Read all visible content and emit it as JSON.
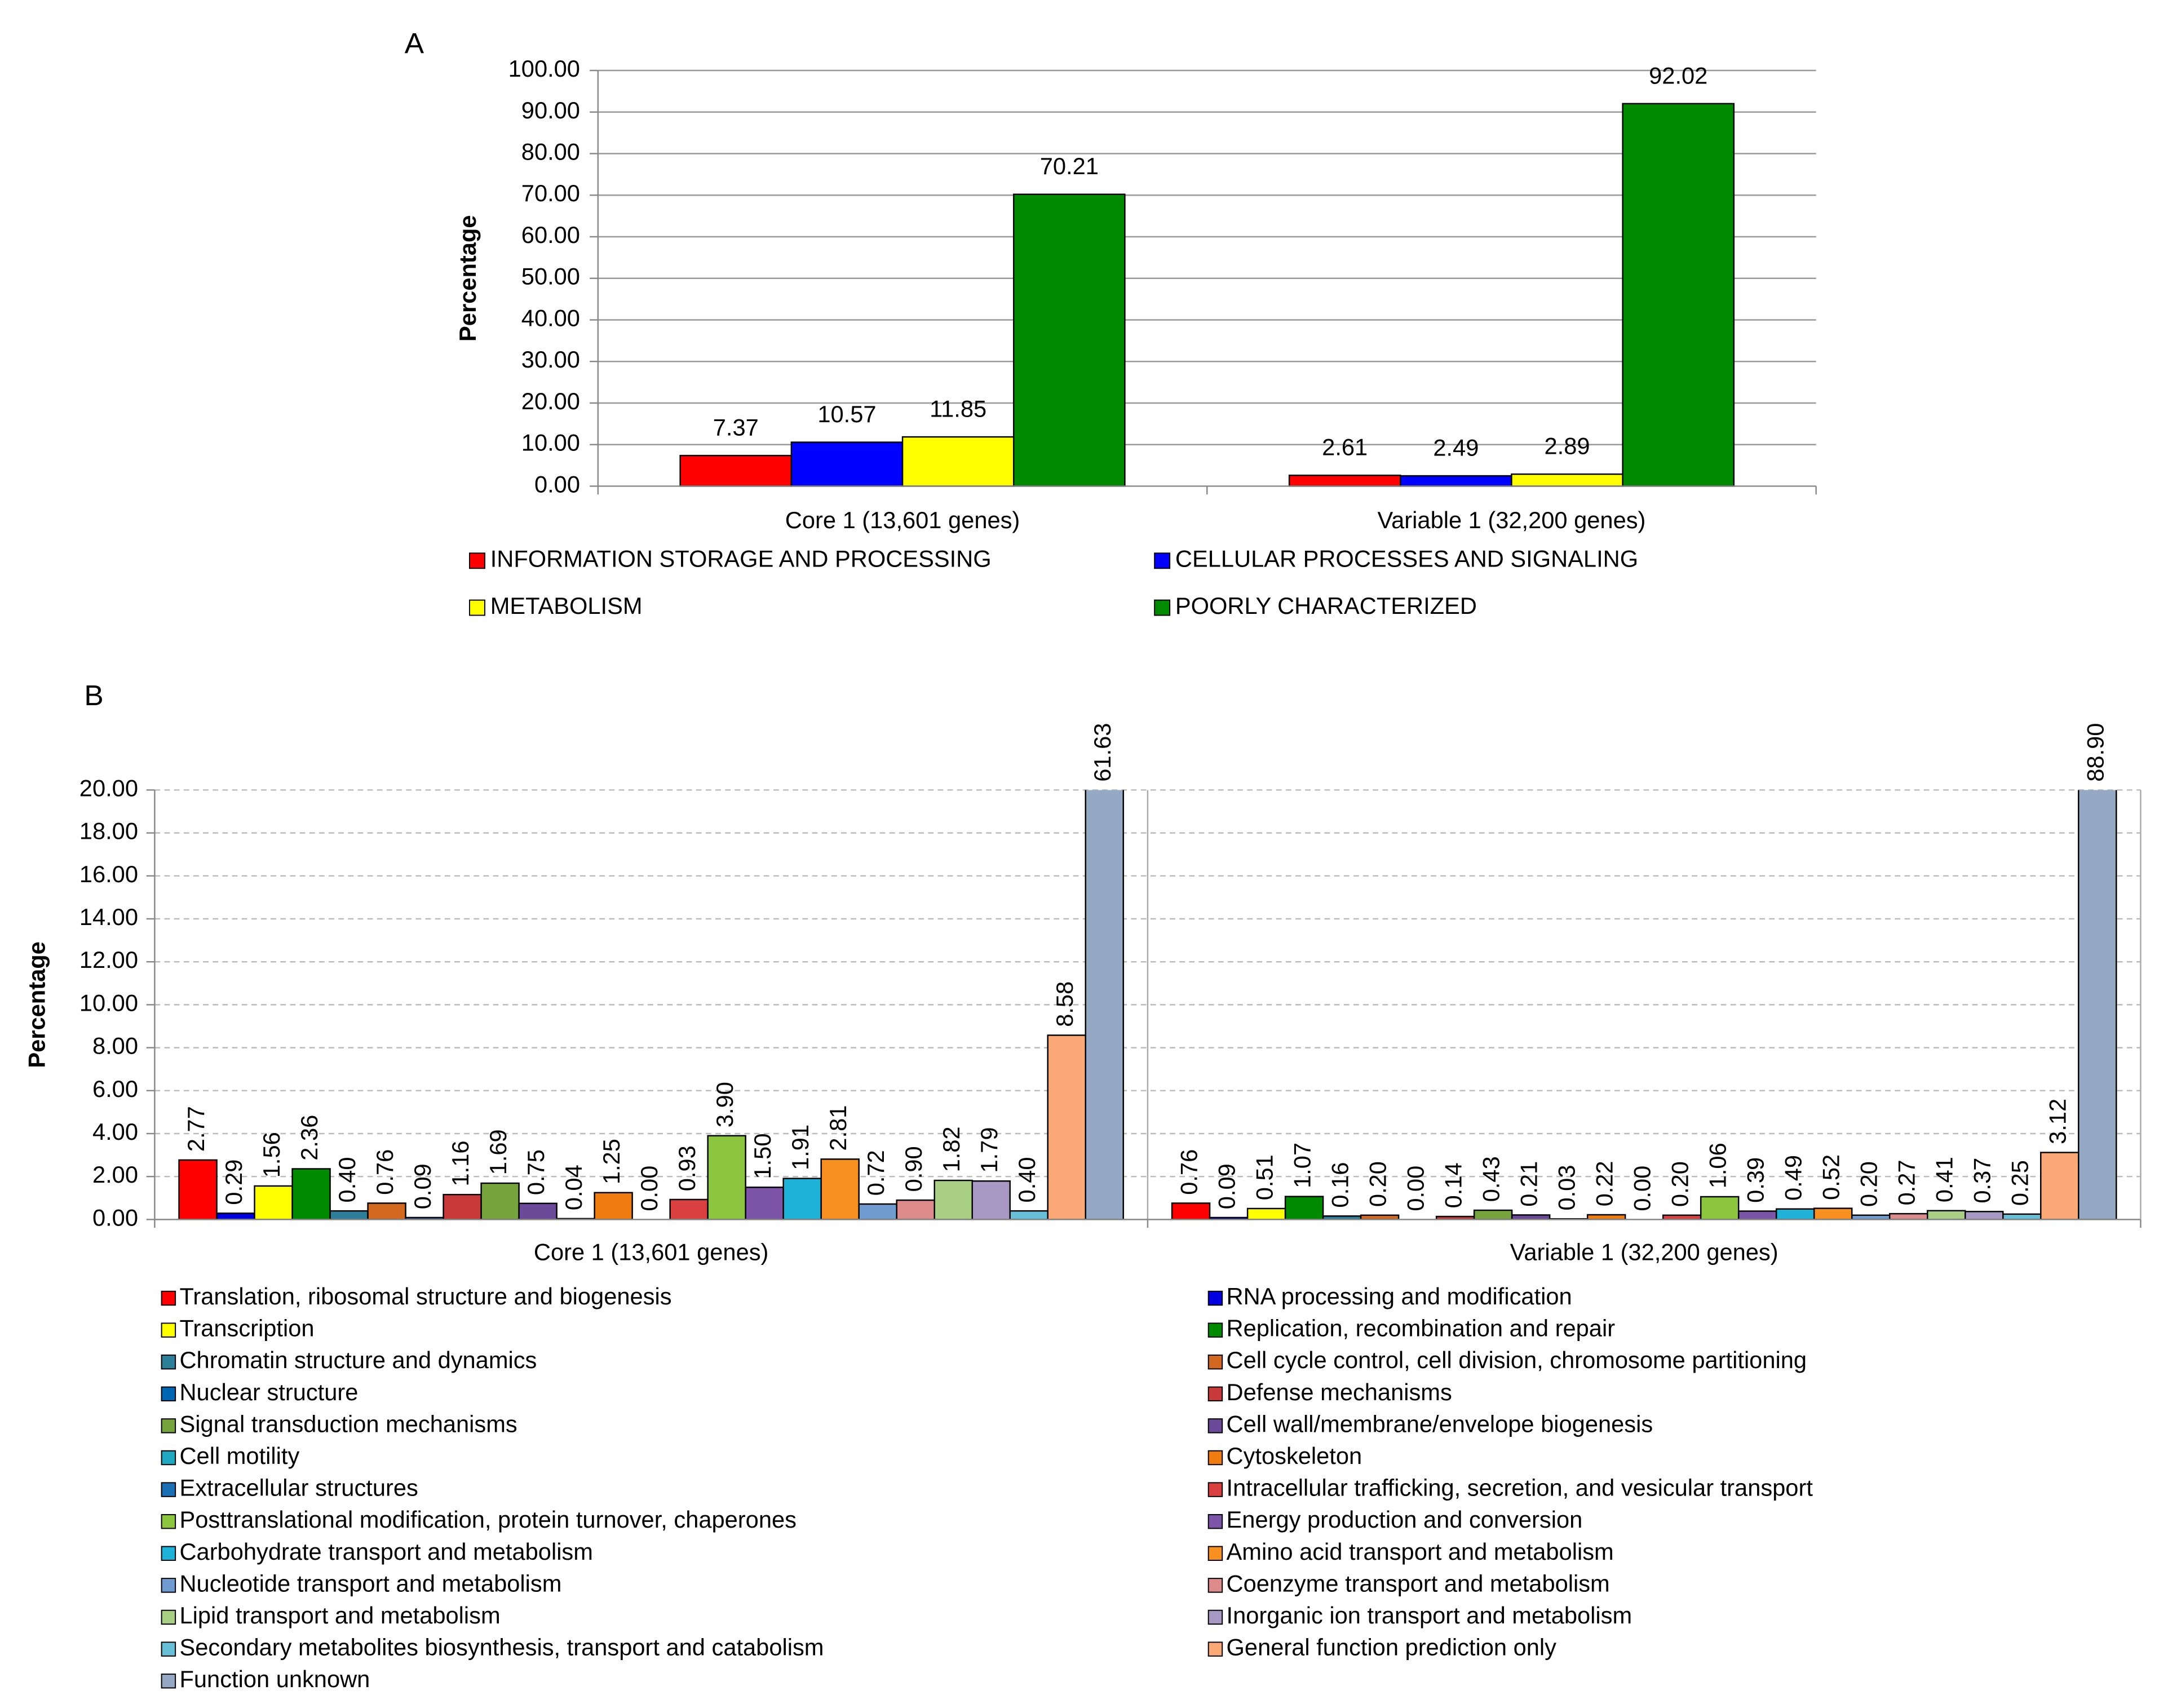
{
  "chart_data": [
    {
      "type": "bar",
      "panel_label": "A",
      "ylabel": "Percentage",
      "categories": [
        "Core 1 (13,601 genes)",
        "Variable 1 (32,200 genes)"
      ],
      "series": [
        {
          "name": "INFORMATION STORAGE AND PROCESSING",
          "color": "#ff0000",
          "values": [
            7.37,
            2.61
          ]
        },
        {
          "name": "CELLULAR PROCESSES AND SIGNALING",
          "color": "#0000ff",
          "values": [
            10.57,
            2.49
          ]
        },
        {
          "name": "METABOLISM",
          "color": "#ffff00",
          "values": [
            11.85,
            2.89
          ]
        },
        {
          "name": "POORLY CHARACTERIZED",
          "color": "#008a00",
          "values": [
            70.21,
            92.02
          ]
        }
      ],
      "ylim": [
        0,
        100
      ],
      "yticks": [
        {
          "value": 0,
          "label": "0.00"
        },
        {
          "value": 10,
          "label": "10.00"
        },
        {
          "value": 20,
          "label": "20.00"
        },
        {
          "value": 30,
          "label": "30.00"
        },
        {
          "value": 40,
          "label": "40.00"
        },
        {
          "value": 50,
          "label": "50.00"
        },
        {
          "value": 60,
          "label": "60.00"
        },
        {
          "value": 70,
          "label": "70.00"
        },
        {
          "value": 80,
          "label": "80.00"
        },
        {
          "value": 90,
          "label": "90.00"
        },
        {
          "value": 100,
          "label": "100.00"
        }
      ],
      "grid": true,
      "legend": "bottom"
    },
    {
      "type": "bar",
      "panel_label": "B",
      "ylabel": "Percentage",
      "categories": [
        "Core 1 (13,601 genes)",
        "Variable 1 (32,200 genes)"
      ],
      "series": [
        {
          "name": "Translation, ribosomal structure and biogenesis",
          "color": "#ff0000",
          "values": [
            2.77,
            0.76
          ],
          "value_labels": [
            "2.77",
            "0.76"
          ]
        },
        {
          "name": "RNA processing and modification",
          "color": "#0000e0",
          "values": [
            0.29,
            0.09
          ],
          "value_labels": [
            "0.29",
            "0.09"
          ]
        },
        {
          "name": "Transcription",
          "color": "#ffff00",
          "values": [
            1.56,
            0.51
          ],
          "value_labels": [
            "1.56",
            "0.51"
          ]
        },
        {
          "name": "Replication, recombination and repair",
          "color": "#008a00",
          "values": [
            2.36,
            1.07
          ],
          "value_labels": [
            "2.36",
            "1.07"
          ]
        },
        {
          "name": "Chromatin structure and dynamics",
          "color": "#2e7f99",
          "values": [
            0.4,
            0.16
          ],
          "value_labels": [
            "0.40",
            "0.16"
          ]
        },
        {
          "name": "Cell cycle control, cell division, chromosome partitioning",
          "color": "#d2691e",
          "values": [
            0.76,
            0.2
          ],
          "value_labels": [
            "0.76",
            "0.20"
          ]
        },
        {
          "name": "Nuclear structure",
          "color": "#0066b3",
          "values": [
            0.09,
            0.0
          ],
          "value_labels": [
            "0.09",
            "0.00"
          ]
        },
        {
          "name": "Defense mechanisms",
          "color": "#c8393a",
          "values": [
            1.16,
            0.14
          ],
          "value_labels": [
            "1.16",
            "0.14"
          ]
        },
        {
          "name": "Signal transduction mechanisms",
          "color": "#77a33c",
          "values": [
            1.69,
            0.43
          ],
          "value_labels": [
            "1.69",
            "0.43"
          ]
        },
        {
          "name": "Cell wall/membrane/envelope biogenesis",
          "color": "#6a4a99",
          "values": [
            0.75,
            0.21
          ],
          "value_labels": [
            "0.75",
            "0.21"
          ]
        },
        {
          "name": "Cell motility",
          "color": "#1fa6c0",
          "values": [
            0.04,
            0.03
          ],
          "value_labels": [
            "0.04",
            "0.03"
          ]
        },
        {
          "name": "Cytoskeleton",
          "color": "#f07c10",
          "values": [
            1.25,
            0.22
          ],
          "value_labels": [
            "1.25",
            "0.22"
          ]
        },
        {
          "name": "Extracellular structures",
          "color": "#1a6fb5",
          "values": [
            0.0,
            0.0
          ],
          "value_labels": [
            "0.00",
            "0.00"
          ]
        },
        {
          "name": "Intracellular trafficking, secretion, and vesicular transport",
          "color": "#d9403f",
          "values": [
            0.93,
            0.2
          ],
          "value_labels": [
            "0.93",
            "0.20"
          ]
        },
        {
          "name": "Posttranslational modification, protein turnover, chaperones",
          "color": "#8cc63f",
          "values": [
            3.9,
            1.06
          ],
          "value_labels": [
            "3.90",
            "1.06"
          ]
        },
        {
          "name": "Energy production and conversion",
          "color": "#7d55a8",
          "values": [
            1.5,
            0.39
          ],
          "value_labels": [
            "1.50",
            "0.39"
          ]
        },
        {
          "name": "Carbohydrate transport and metabolism",
          "color": "#1fb2d8",
          "values": [
            1.91,
            0.49
          ],
          "value_labels": [
            "1.91",
            "0.49"
          ]
        },
        {
          "name": "Amino acid transport and metabolism",
          "color": "#f7901e",
          "values": [
            2.81,
            0.52
          ],
          "value_labels": [
            "2.81",
            "0.52"
          ]
        },
        {
          "name": "Nucleotide transport and metabolism",
          "color": "#6f9bd1",
          "values": [
            0.72,
            0.2
          ],
          "value_labels": [
            "0.72",
            "0.20"
          ]
        },
        {
          "name": "Coenzyme transport and metabolism",
          "color": "#dd8a8a",
          "values": [
            0.9,
            0.27
          ],
          "value_labels": [
            "0.90",
            "0.27"
          ]
        },
        {
          "name": "Lipid transport and metabolism",
          "color": "#a9cf85",
          "values": [
            1.82,
            0.41
          ],
          "value_labels": [
            "1.82",
            "0.41"
          ]
        },
        {
          "name": "Inorganic ion transport and metabolism",
          "color": "#a898c4",
          "values": [
            1.79,
            0.37
          ],
          "value_labels": [
            "1.79",
            "0.37"
          ]
        },
        {
          "name": "Secondary metabolites biosynthesis, transport and catabolism",
          "color": "#66bfd6",
          "values": [
            0.4,
            0.25
          ],
          "value_labels": [
            "0.40",
            "0.25"
          ]
        },
        {
          "name": "General function prediction only",
          "color": "#fba877",
          "values": [
            8.58,
            3.12
          ],
          "value_labels": [
            "8.58",
            "3.12"
          ]
        },
        {
          "name": "Function unknown",
          "color": "#95a9c5",
          "values": [
            61.63,
            88.9
          ],
          "value_labels": [
            "61.63",
            "88.90"
          ]
        }
      ],
      "ylim": [
        0,
        20
      ],
      "yticks": [
        {
          "value": 0,
          "label": "0.00"
        },
        {
          "value": 2,
          "label": "2.00"
        },
        {
          "value": 4,
          "label": "4.00"
        },
        {
          "value": 6,
          "label": "6.00"
        },
        {
          "value": 8,
          "label": "8.00"
        },
        {
          "value": 10,
          "label": "10.00"
        },
        {
          "value": 12,
          "label": "12.00"
        },
        {
          "value": 14,
          "label": "14.00"
        },
        {
          "value": 16,
          "label": "16.00"
        },
        {
          "value": 18,
          "label": "18.00"
        },
        {
          "value": 20,
          "label": "20.00"
        }
      ],
      "grid": true,
      "legend": "bottom"
    }
  ]
}
